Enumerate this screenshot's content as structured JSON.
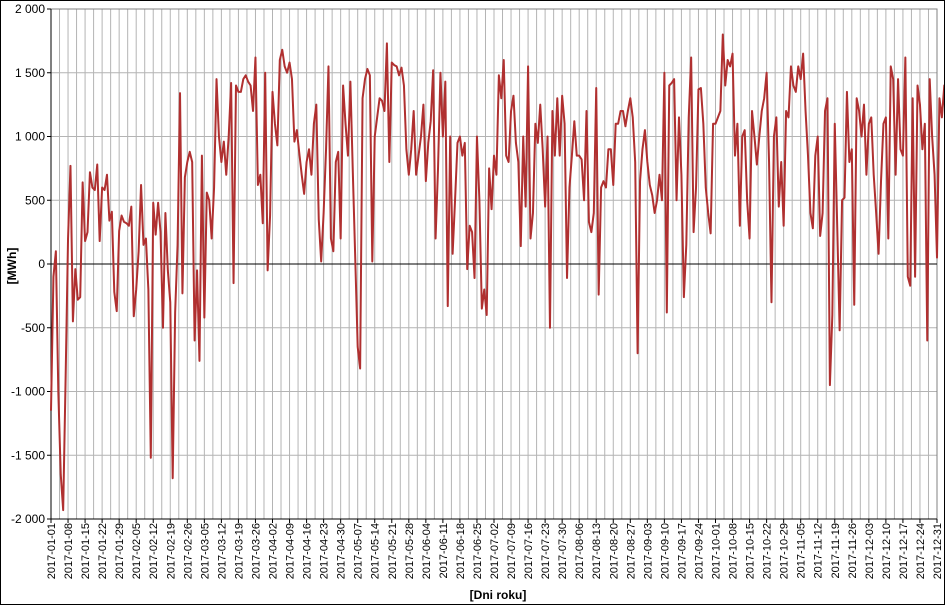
{
  "chart_data": {
    "type": "line",
    "title": "",
    "xlabel": "[Dni roku]",
    "ylabel": "[MWh]",
    "ylim": [
      -2000,
      2000
    ],
    "y_ticks": [
      -2000,
      -1500,
      -1000,
      -500,
      0,
      500,
      1000,
      1500,
      2000
    ],
    "y_tick_labels": [
      "-2 000",
      "-1 500",
      "-1 000",
      "-500",
      "0",
      "500",
      "1 000",
      "1 500",
      "2 000"
    ],
    "x_start": "2017-01-01",
    "x_end": "2017-12-31",
    "x_tick_labels": [
      "2017-01-01",
      "2017-01-08",
      "2017-01-15",
      "2017-01-22",
      "2017-01-29",
      "2017-02-05",
      "2017-02-12",
      "2017-02-19",
      "2017-02-26",
      "2017-03-05",
      "2017-03-12",
      "2017-03-19",
      "2017-03-26",
      "2017-04-02",
      "2017-04-09",
      "2017-04-16",
      "2017-04-23",
      "2017-04-30",
      "2017-05-07",
      "2017-05-14",
      "2017-05-21",
      "2017-05-28",
      "2017-06-04",
      "2017-06-11",
      "2017-06-18",
      "2017-06-25",
      "2017-07-02",
      "2017-07-09",
      "2017-07-16",
      "2017-07-23",
      "2017-07-30",
      "2017-08-06",
      "2017-08-13",
      "2017-08-20",
      "2017-08-27",
      "2017-09-03",
      "2017-09-10",
      "2017-09-17",
      "2017-09-24",
      "2017-10-01",
      "2017-10-08",
      "2017-10-15",
      "2017-10-22",
      "2017-10-29",
      "2017-11-05",
      "2017-11-12",
      "2017-11-19",
      "2017-11-26",
      "2017-12-03",
      "2017-12-10",
      "2017-12-17",
      "2017-12-24",
      "2017-12-31"
    ],
    "grid": true,
    "legend": "none",
    "colors": {
      "series": "#b03030",
      "grid": "#b4b4b4",
      "zero_line": "#000000",
      "axis": "#000000"
    },
    "series": [
      {
        "values": [
          -1150,
          -100,
          100,
          -1000,
          -1650,
          -1930,
          -900,
          200,
          770,
          -450,
          -40,
          -280,
          -260,
          640,
          180,
          250,
          720,
          600,
          580,
          780,
          180,
          600,
          580,
          700,
          340,
          410,
          -220,
          -370,
          260,
          380,
          330,
          320,
          300,
          450,
          -410,
          -200,
          100,
          620,
          150,
          200,
          -200,
          -1520,
          480,
          230,
          480,
          250,
          -500,
          400,
          -50,
          -300,
          -1680,
          -380,
          150,
          1340,
          -230,
          680,
          800,
          880,
          800,
          -600,
          -50,
          -760,
          850,
          -420,
          560,
          500,
          200,
          600,
          1450,
          1000,
          800,
          960,
          700,
          1000,
          1420,
          -150,
          1400,
          1350,
          1350,
          1450,
          1480,
          1430,
          1400,
          1200,
          1620,
          620,
          700,
          320,
          1500,
          -50,
          380,
          1350,
          1100,
          930,
          1600,
          1680,
          1550,
          1500,
          1580,
          1450,
          960,
          1050,
          870,
          700,
          550,
          800,
          900,
          700,
          1100,
          1250,
          350,
          20,
          400,
          900,
          1550,
          200,
          100,
          800,
          880,
          200,
          1400,
          1100,
          850,
          1430,
          720,
          40,
          -650,
          -820,
          1300,
          1450,
          1530,
          1480,
          20,
          1000,
          1150,
          1300,
          1280,
          1200,
          1730,
          800,
          1580,
          1560,
          1550,
          1480,
          1540,
          1400,
          900,
          700,
          900,
          1200,
          700,
          850,
          1000,
          1250,
          650,
          950,
          1120,
          1520,
          200,
          750,
          1500,
          1000,
          1430,
          -330,
          1000,
          80,
          500,
          950,
          1000,
          850,
          950,
          -40,
          300,
          250,
          -110,
          1000,
          500,
          -350,
          -200,
          -400,
          750,
          430,
          850,
          700,
          1480,
          1300,
          1600,
          850,
          800,
          1200,
          1320,
          950,
          800,
          140,
          1000,
          450,
          1550,
          200,
          400,
          1100,
          950,
          1250,
          900,
          450,
          1000,
          -500,
          1200,
          850,
          1300,
          850,
          1320,
          1100,
          -110,
          600,
          850,
          1120,
          850,
          850,
          820,
          500,
          1200,
          330,
          250,
          400,
          1380,
          -240,
          600,
          650,
          600,
          900,
          900,
          620,
          1100,
          1100,
          1200,
          1200,
          1080,
          1200,
          1300,
          1150,
          800,
          -700,
          650,
          900,
          1050,
          800,
          620,
          540,
          400,
          500,
          700,
          500,
          1500,
          -380,
          1400,
          1420,
          1450,
          500,
          1150,
          700,
          -260,
          150,
          1150,
          1620,
          250,
          600,
          1370,
          1380,
          1100,
          600,
          400,
          240,
          1100,
          1100,
          1150,
          1200,
          1800,
          1400,
          1600,
          1550,
          1650,
          850,
          1100,
          300,
          1000,
          1050,
          500,
          200,
          1200,
          1000,
          780,
          1000,
          1200,
          1300,
          1500,
          800,
          -300,
          1000,
          1150,
          450,
          800,
          300,
          1200,
          1150,
          1550,
          1400,
          1350,
          1550,
          1450,
          1650,
          1200,
          850,
          400,
          280,
          850,
          1000,
          220,
          400,
          1200,
          1300,
          -950,
          -400,
          1100,
          300,
          -520,
          500,
          520,
          1350,
          800,
          900,
          -320,
          1300,
          1200,
          1000,
          1250,
          700,
          1100,
          1150,
          700,
          400,
          80,
          650,
          1100,
          1150,
          200,
          1550,
          1450,
          700,
          1450,
          900,
          850,
          1620,
          -100,
          -170,
          1300,
          -100,
          1400,
          1250,
          900,
          1100,
          -600,
          1450,
          1000,
          700,
          50,
          1300,
          1150,
          1400,
          800,
          1250,
          1000,
          500,
          1200,
          850,
          800,
          350,
          1700,
          1400,
          1760
        ]
      }
    ]
  }
}
